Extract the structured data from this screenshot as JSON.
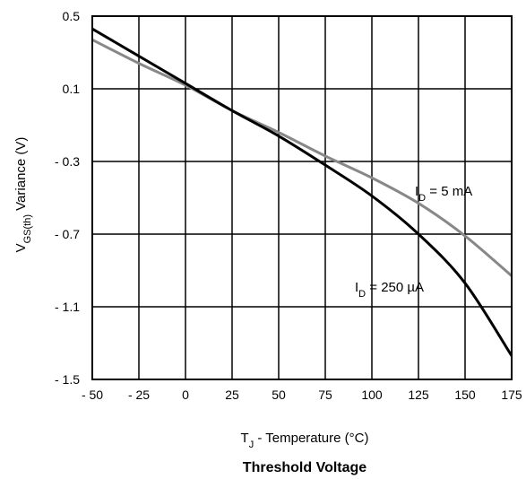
{
  "chart_data": {
    "type": "line",
    "title": "Threshold Voltage",
    "xlabel": {
      "main": "T",
      "sub": "J",
      "rest": " - Temperature (°C)"
    },
    "ylabel": {
      "main": "V",
      "sub": "GS(th)",
      "rest": " Variance (V)"
    },
    "xlim": [
      -50,
      175
    ],
    "ylim": [
      -1.5,
      0.5
    ],
    "x_ticks": [
      -50,
      -25,
      0,
      25,
      50,
      75,
      100,
      125,
      150,
      175
    ],
    "x_tick_labels": [
      "- 50",
      "- 25",
      "0",
      "25",
      "50",
      "75",
      "100",
      "125",
      "150",
      "175"
    ],
    "y_ticks": [
      0.5,
      0.1,
      -0.3,
      -0.7,
      -1.1,
      -1.5
    ],
    "y_tick_labels": [
      "0.5",
      "0.1",
      "- 0.3",
      "- 0.7",
      "- 1.1",
      "- 1.5"
    ],
    "grid": true,
    "series": [
      {
        "name": "I_D = 5 mA",
        "label": {
          "main": "I",
          "sub": "D",
          "rest": " = 5 mA"
        },
        "color": "#888888",
        "x": [
          -50,
          -25,
          0,
          25,
          50,
          75,
          100,
          125,
          150,
          175
        ],
        "y": [
          0.37,
          0.24,
          0.12,
          -0.02,
          -0.14,
          -0.27,
          -0.39,
          -0.53,
          -0.71,
          -0.93
        ]
      },
      {
        "name": "I_D = 250 µA",
        "label": {
          "main": "I",
          "sub": "D",
          "rest": " = 250 µA"
        },
        "color": "#000000",
        "x": [
          -50,
          -25,
          0,
          25,
          50,
          75,
          100,
          125,
          150,
          175
        ],
        "y": [
          0.43,
          0.28,
          0.13,
          -0.02,
          -0.16,
          -0.32,
          -0.49,
          -0.7,
          -0.97,
          -1.37
        ]
      }
    ]
  }
}
